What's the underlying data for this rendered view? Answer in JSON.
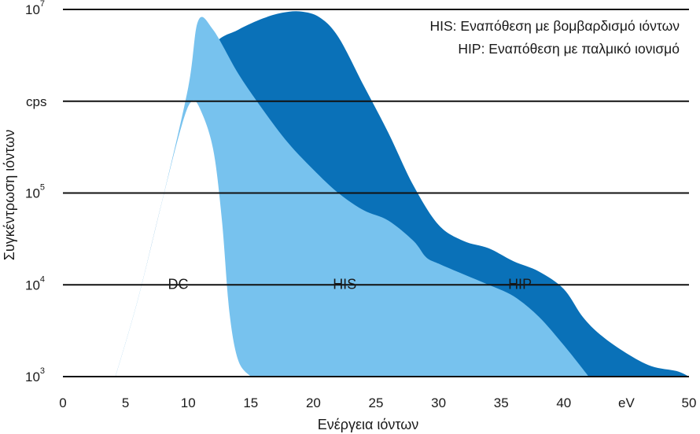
{
  "chart_data": {
    "type": "area",
    "x_axis": {
      "label": "Ενέργεια ιόντων",
      "range": [
        0,
        50
      ],
      "ticks": [
        "0",
        "5",
        "10",
        "15",
        "20",
        "25",
        "30",
        "35",
        "40",
        "eV",
        "50"
      ]
    },
    "y_axis": {
      "label": "Συγκέντρωση ιόντων",
      "scale": "log",
      "range": [
        1000,
        10000000
      ],
      "ticks": [
        {
          "base": "10",
          "exp": "3",
          "value": 1000
        },
        {
          "base": "10",
          "exp": "4",
          "value": 10000
        },
        {
          "base": "10",
          "exp": "5",
          "value": 100000
        },
        {
          "base": "cps",
          "exp": "",
          "value": 1000000
        },
        {
          "base": "10",
          "exp": "7",
          "value": 10000000
        }
      ]
    },
    "grid": "horizontal",
    "legend_position": "top-right",
    "legend": [
      "HIS: Εναπόθεση με βομβαρδισμό ιόντων",
      "HIP: Εναπόθεση με παλμικό ιονισμό"
    ],
    "series": [
      {
        "name": "HIP",
        "color": "#0a71b8",
        "x": [
          4.2,
          6,
          8,
          10,
          12,
          14,
          16,
          17.5,
          19,
          20.5,
          22,
          24,
          26,
          28,
          30,
          32,
          34,
          36,
          38,
          40,
          41.5,
          43,
          45,
          47,
          49,
          50
        ],
        "y": [
          1000,
          7000,
          90000,
          1000000,
          4000000,
          6000000,
          8000000,
          9200000,
          9500000,
          8200000,
          5000000,
          1500000,
          450000,
          120000,
          45000,
          30000,
          25000,
          18000,
          14000,
          9000,
          4500,
          2800,
          1800,
          1300,
          1150,
          1000
        ]
      },
      {
        "name": "HIS",
        "color": "#77c2ee",
        "x": [
          4.2,
          6,
          8,
          10,
          10.8,
          12,
          14,
          16,
          18,
          20,
          22,
          24,
          26,
          28,
          29,
          30,
          32,
          34,
          36,
          38,
          40,
          42
        ],
        "y": [
          1000,
          7000,
          90000,
          1400000,
          7500000,
          6000000,
          2000000,
          800000,
          350000,
          180000,
          100000,
          65000,
          50000,
          30000,
          20000,
          17000,
          13000,
          10000,
          7500,
          4500,
          2200,
          1000
        ]
      },
      {
        "name": "DC",
        "color": "#ffffff",
        "x": [
          4.2,
          6,
          8,
          9.5,
          10.3,
          11,
          12,
          12.7,
          13.3,
          14,
          15
        ],
        "y": [
          1000,
          7000,
          90000,
          550000,
          1000000,
          800000,
          300000,
          50000,
          5000,
          1500,
          1000
        ]
      }
    ],
    "region_labels": [
      {
        "text": "DC",
        "x": 9.2,
        "y": 9000
      },
      {
        "text": "HIS",
        "x": 22.5,
        "y": 9000
      },
      {
        "text": "HIP",
        "x": 36.5,
        "y": 9000
      }
    ]
  }
}
